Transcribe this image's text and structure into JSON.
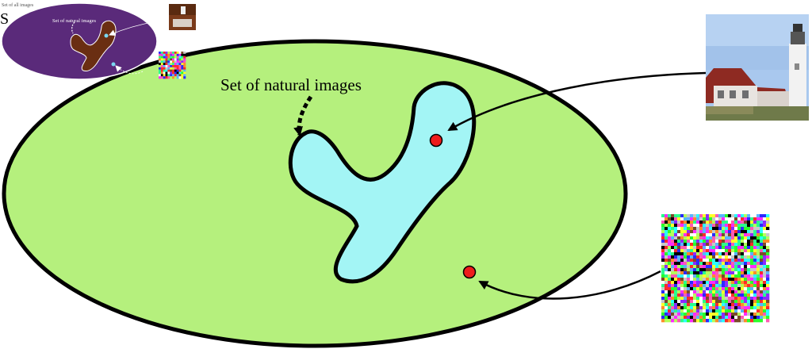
{
  "figure": {
    "natural_label": "Set of natural images",
    "title_partial": "S",
    "inset_title_text": "Set of all images",
    "inset_natural_label": "Set of natural images",
    "colors": {
      "all_images_fill": "#b5f07d",
      "natural_fill": "#a3f5f5",
      "outline": "#000000",
      "point": "#ee1c1c",
      "inset_fill": "#5a2a7a",
      "inset_blob": "#6a2e12",
      "inset_point": "#7ad8f0"
    },
    "images": [
      {
        "name": "lighthouse-photo",
        "kind": "natural image"
      },
      {
        "name": "random-noise-image",
        "kind": "random pixel image"
      }
    ]
  }
}
